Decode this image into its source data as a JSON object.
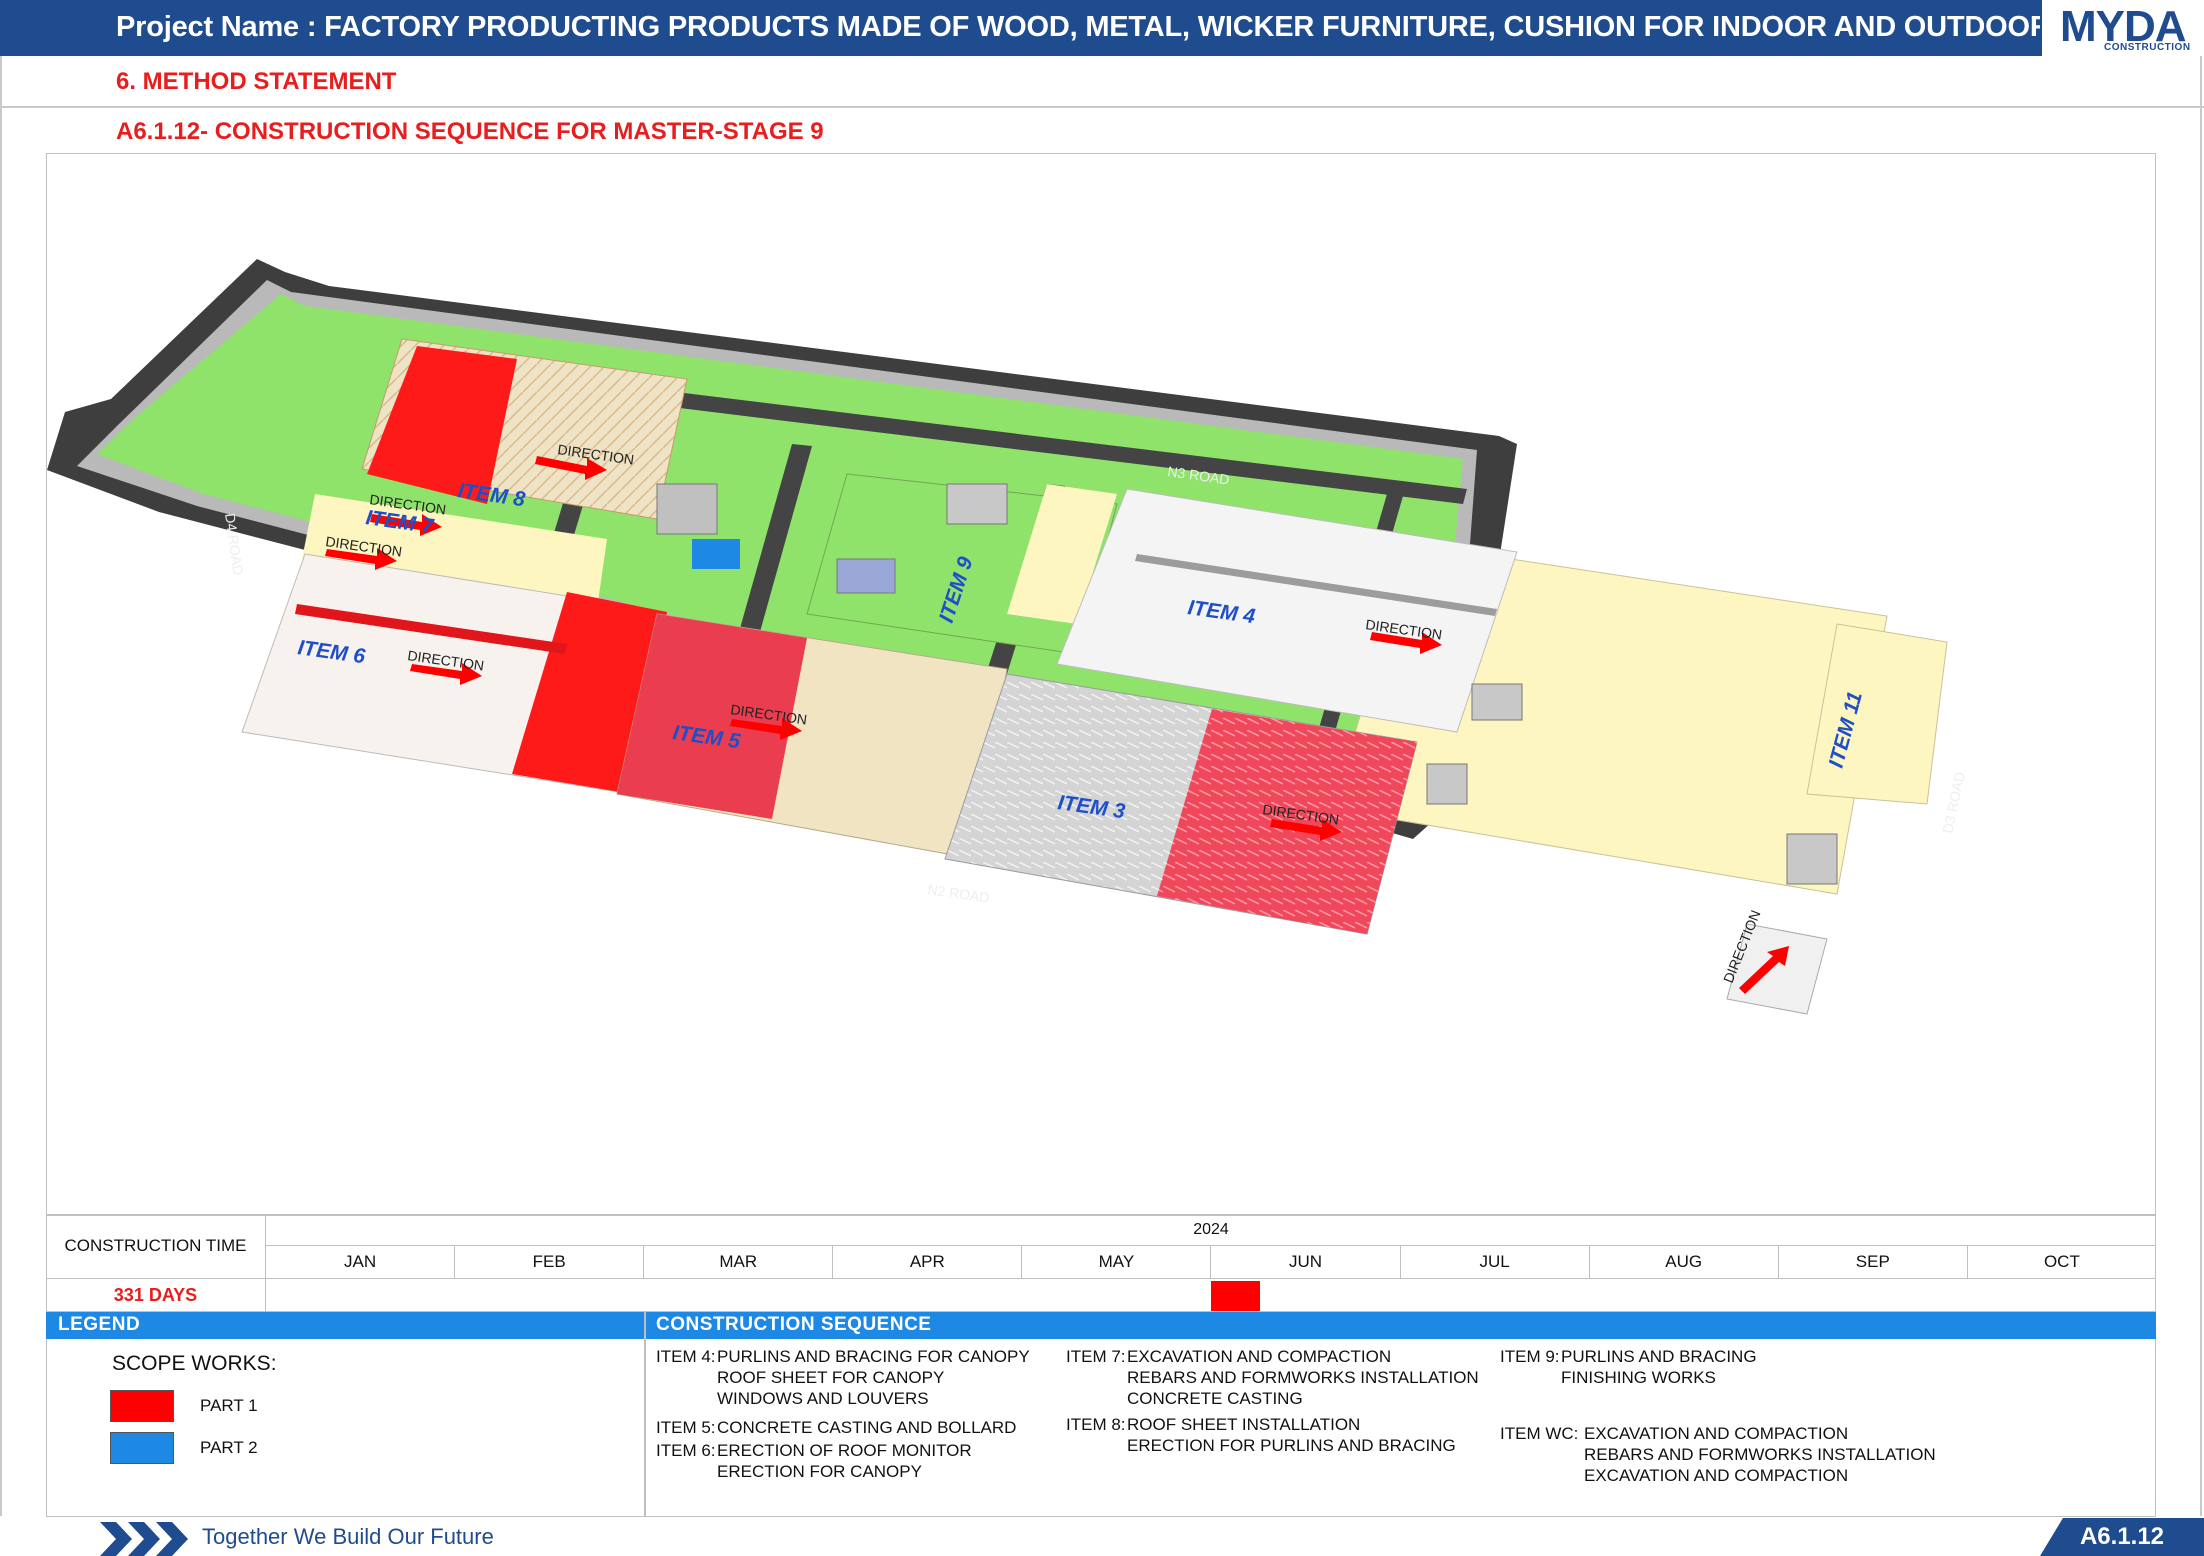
{
  "header": {
    "project_title": "Project Name : FACTORY PRODUCTING PRODUCTS MADE OF WOOD, METAL, WICKER FURNITURE, CUSHION FOR INDOOR AND OUTDOOR",
    "logo_text": "MYDA",
    "logo_sub": "CONSTRUCTION",
    "section": "6. METHOD STATEMENT",
    "subsection": "A6.1.12- CONSTRUCTION SEQUENCE FOR MASTER-STAGE 9"
  },
  "site_plan": {
    "roads": [
      "N3 ROAD",
      "N2 ROAD",
      "D4 ROAD",
      "D3 ROAD"
    ],
    "items": [
      "ITEM 8",
      "ITEM 7",
      "ITEM 6",
      "ITEM 5",
      "ITEM 9",
      "ITEM 4",
      "ITEM 3",
      "ITEM 11"
    ],
    "direction_label": "DIRECTION",
    "colors": {
      "part1": "#ff0000",
      "part2": "#1e88e5",
      "grass": "#8fe36a",
      "slab": "#fdf6c0",
      "road": "#4a4a4a"
    }
  },
  "schedule": {
    "label": "CONSTRUCTION TIME",
    "days": "331 DAYS",
    "year": "2024",
    "months": [
      "JAN",
      "FEB",
      "MAR",
      "APR",
      "MAY",
      "JUN",
      "JUL",
      "AUG",
      "SEP",
      "OCT"
    ],
    "bar": {
      "start_month_index": 5,
      "start_fraction": 0.0,
      "duration_months": 0.26
    }
  },
  "legend": {
    "title": "LEGEND",
    "scope_title": "SCOPE WORKS:",
    "part1": "PART 1",
    "part2": "PART 2"
  },
  "sequence": {
    "title": "CONSTRUCTION SEQUENCE",
    "item4": {
      "head": "ITEM 4:",
      "lines": [
        "PURLINS AND BRACING FOR CANOPY",
        "ROOF SHEET FOR CANOPY",
        "WINDOWS AND LOUVERS"
      ]
    },
    "item5": {
      "head": "ITEM 5:",
      "lines": [
        "CONCRETE CASTING AND BOLLARD"
      ]
    },
    "item6": {
      "head": "ITEM 6:",
      "lines": [
        "ERECTION OF ROOF MONITOR",
        "ERECTION FOR CANOPY"
      ]
    },
    "item7": {
      "head": "ITEM 7:",
      "lines": [
        "EXCAVATION AND COMPACTION",
        "REBARS AND FORMWORKS INSTALLATION",
        "CONCRETE CASTING"
      ]
    },
    "item8": {
      "head": "ITEM 8:",
      "lines": [
        "ROOF SHEET INSTALLATION",
        "ERECTION FOR PURLINS AND BRACING"
      ]
    },
    "item9": {
      "head": "ITEM 9:",
      "lines": [
        "PURLINS AND BRACING",
        "FINISHING WORKS"
      ]
    },
    "itemwc": {
      "head": "ITEM WC:",
      "lines": [
        "EXCAVATION AND COMPACTION",
        "REBARS AND FORMWORKS INSTALLATION",
        "EXCAVATION AND COMPACTION"
      ]
    }
  },
  "footer": {
    "slogan": "Together We Build Our Future",
    "page_code": "A6.1.12"
  }
}
